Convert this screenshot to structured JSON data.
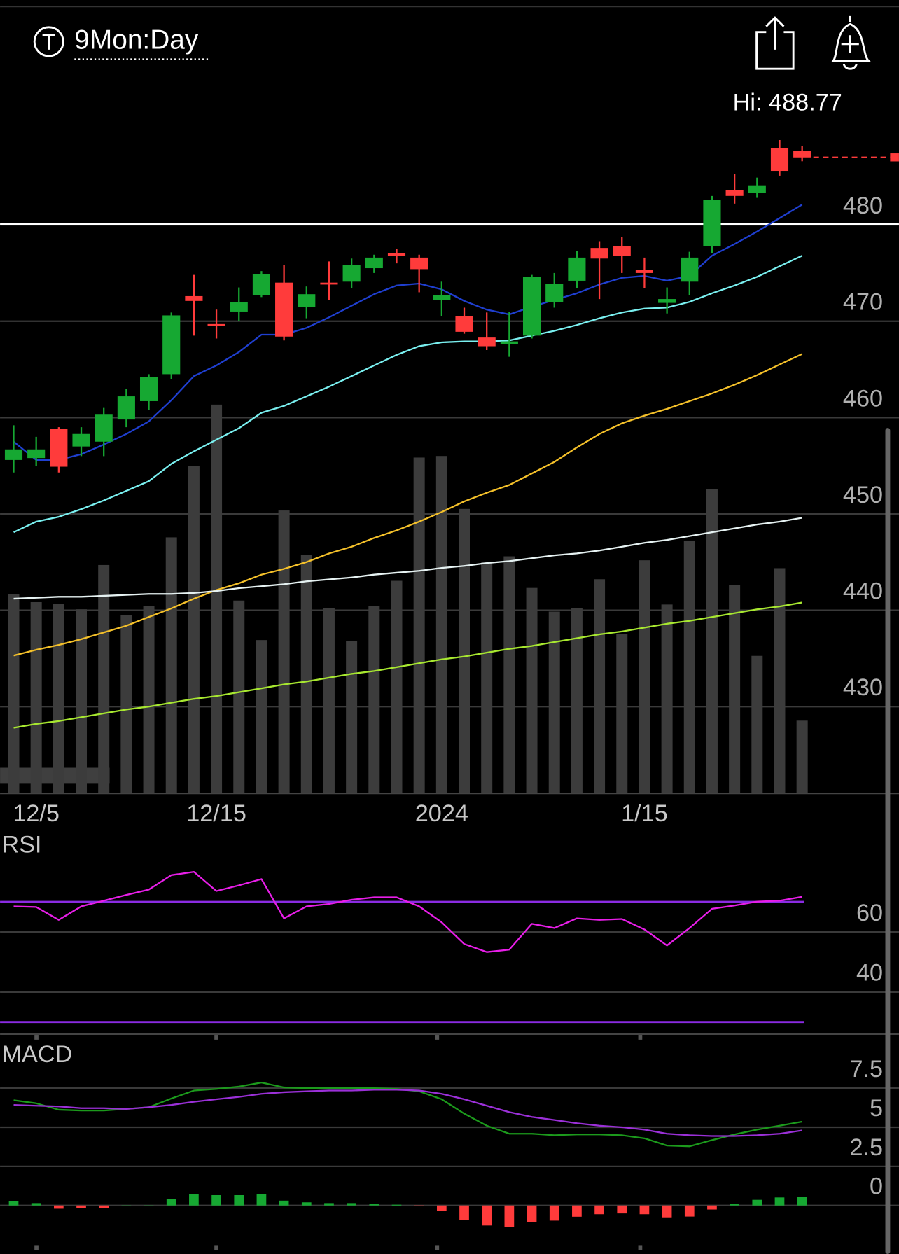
{
  "header": {
    "symbol": "9Mon:Day",
    "high_label": "Hi: 488.77"
  },
  "chart_data": [
    {
      "type": "candlestick",
      "categories": [
        null,
        "12/5",
        null,
        null,
        null,
        null,
        null,
        null,
        null,
        "12/15",
        null,
        null,
        null,
        null,
        null,
        null,
        null,
        null,
        null,
        "2024",
        null,
        null,
        null,
        null,
        null,
        null,
        null,
        null,
        "1/15",
        null,
        null,
        null,
        null,
        null,
        null,
        null
      ],
      "open": [
        455.6,
        455.8,
        458.8,
        457,
        457.5,
        459.8,
        461.7,
        464.5,
        472.6,
        469.7,
        471,
        472.7,
        474,
        471.5,
        474,
        474.1,
        475.5,
        477.1,
        476.6,
        472.2,
        470.5,
        468.3,
        467.6,
        468.5,
        472,
        474.2,
        477.6,
        477.8,
        475.3,
        471.9,
        474.1,
        477.8,
        483.6,
        483.3,
        488,
        487.7
      ],
      "high": [
        459.2,
        458,
        459,
        459,
        461,
        463,
        464.5,
        470.9,
        474.8,
        471.2,
        473.5,
        475.2,
        475.8,
        473.6,
        476.2,
        476.5,
        476.9,
        477.5,
        476.9,
        474.1,
        471.4,
        470.9,
        471,
        474.8,
        475,
        477.3,
        478.3,
        478.7,
        476.6,
        473.5,
        477.2,
        483,
        485.3,
        484.9,
        488.8,
        488.2
      ],
      "low": [
        454.3,
        455,
        454.3,
        456,
        456,
        459,
        460.8,
        464,
        468.5,
        468.2,
        470,
        472.5,
        468,
        470.3,
        472.2,
        473.4,
        475,
        476,
        473,
        470.5,
        468.7,
        467,
        466.3,
        468.2,
        471.4,
        473.4,
        472.3,
        475,
        473.4,
        470.8,
        472.7,
        477.1,
        482.2,
        482.8,
        485.1,
        486.6
      ],
      "close": [
        456.7,
        456.7,
        454.9,
        458.3,
        460.3,
        462.2,
        464.2,
        470.6,
        472.1,
        469.5,
        472,
        474.9,
        468.4,
        472.8,
        473.8,
        475.8,
        476.6,
        476.8,
        475.4,
        472.7,
        468.9,
        467.4,
        467.9,
        474.6,
        473.9,
        476.6,
        476.5,
        476.8,
        475,
        472.3,
        476.6,
        482.6,
        483,
        484.1,
        485.6,
        487
      ],
      "up_color": "#16a832",
      "down_color": "#ff3b3b",
      "ylim": [
        421,
        503
      ],
      "yticks": [
        430,
        440,
        450,
        460,
        470,
        480
      ],
      "grid": true,
      "alert_line": 480.1,
      "last_price": 487,
      "series": [
        {
          "color": "#1f3fd0",
          "values": [
            457.5,
            455.6,
            455.6,
            456.2,
            457.2,
            458.3,
            459.6,
            461.8,
            464.3,
            465.4,
            466.8,
            468.6,
            468.6,
            469.3,
            470.4,
            471.6,
            472.8,
            473.7,
            473.9,
            473.3,
            472.1,
            471.2,
            470.7,
            471.5,
            472.2,
            472.9,
            473.8,
            474.5,
            474.7,
            474.2,
            474.7,
            476.8,
            478,
            479.3,
            480.7,
            482.1
          ]
        },
        {
          "color": "#7af0f0",
          "values": [
            448.1,
            449.2,
            449.7,
            450.5,
            451.4,
            452.4,
            453.4,
            455.2,
            456.5,
            457.7,
            458.9,
            460.5,
            461.2,
            462.2,
            463.2,
            464.3,
            465.4,
            466.5,
            467.4,
            467.8,
            467.9,
            467.9,
            468,
            468.5,
            469,
            469.6,
            470.3,
            470.9,
            471.3,
            471.4,
            472,
            472.9,
            473.7,
            474.6,
            475.7,
            476.8
          ]
        },
        {
          "color": "#f5c12a",
          "values": [
            435.3,
            435.9,
            436.4,
            437,
            437.7,
            438.4,
            439.3,
            440.2,
            441.2,
            442.1,
            442.8,
            443.7,
            444.3,
            445,
            445.9,
            446.6,
            447.5,
            448.3,
            449.2,
            450.2,
            451.3,
            452.2,
            453,
            454.2,
            455.4,
            456.9,
            458.3,
            459.4,
            460.2,
            460.9,
            461.7,
            462.5,
            463.4,
            464.4,
            465.5,
            466.6
          ]
        },
        {
          "color": "#e6f2f2",
          "values": [
            441.2,
            441.3,
            441.4,
            441.4,
            441.5,
            441.6,
            441.7,
            441.7,
            441.8,
            442,
            442.3,
            442.5,
            442.7,
            443,
            443.2,
            443.4,
            443.7,
            443.9,
            444.1,
            444.4,
            444.6,
            444.9,
            445.1,
            445.4,
            445.7,
            445.9,
            446.2,
            446.6,
            447,
            447.3,
            447.7,
            448.1,
            448.5,
            448.9,
            449.2,
            449.6
          ]
        },
        {
          "color": "#a8e830",
          "values": [
            427.8,
            428.2,
            428.5,
            428.9,
            429.3,
            429.7,
            430,
            430.4,
            430.8,
            431.1,
            431.5,
            431.9,
            432.3,
            432.6,
            433,
            433.4,
            433.7,
            434.1,
            434.5,
            434.9,
            435.2,
            435.6,
            436,
            436.3,
            436.7,
            437.1,
            437.5,
            437.8,
            438.2,
            438.6,
            438.9,
            439.3,
            439.7,
            440.1,
            440.4,
            440.8
          ]
        }
      ],
      "volume": {
        "color": "#3c3c3c",
        "lim": [
          0,
          1000
        ],
        "values": [
          252,
          242,
          240,
          233,
          289,
          226,
          237,
          324,
          414,
          492,
          244,
          194,
          358,
          302,
          234,
          193,
          237,
          269,
          425,
          427,
          360,
          293,
          300,
          260,
          230,
          234,
          271,
          202,
          295,
          239,
          320,
          385,
          264,
          174,
          285,
          92
        ]
      }
    },
    {
      "type": "line",
      "title": "RSI",
      "ylim": [
        26,
        92
      ],
      "yticks": [
        40,
        60
      ],
      "reference_lines": [
        30,
        70
      ],
      "reference_color": "#8a2be2",
      "series": [
        {
          "color": "#e81ee8",
          "values": [
            68.5,
            68.3,
            64,
            68.5,
            70.4,
            72.3,
            74.1,
            78.9,
            80,
            73.6,
            75.5,
            77.6,
            64.5,
            68.5,
            69.3,
            70.7,
            71.5,
            71.5,
            68.5,
            63.2,
            56,
            53.3,
            54.1,
            62.7,
            61.3,
            64.5,
            64,
            64.3,
            60.8,
            55.5,
            61.3,
            67.7,
            68.8,
            70.1,
            70.4,
            71.7
          ]
        }
      ]
    },
    {
      "type": "macd",
      "title": "MACD",
      "ylim": [
        -3.1,
        10.6
      ],
      "yticks": [
        0,
        2.5,
        5,
        7.5
      ],
      "up_color": "#16a832",
      "down_color": "#ff3b3b",
      "series": [
        {
          "color": "#1c9a1c",
          "values": [
            6.73,
            6.53,
            6.12,
            6.07,
            6.07,
            6.17,
            6.28,
            6.84,
            7.35,
            7.45,
            7.6,
            7.86,
            7.55,
            7.5,
            7.5,
            7.5,
            7.5,
            7.45,
            7.3,
            6.79,
            5.87,
            5.1,
            4.59,
            4.59,
            4.49,
            4.54,
            4.54,
            4.49,
            4.29,
            3.83,
            3.78,
            4.18,
            4.54,
            4.85,
            5.1,
            5.36
          ]
        },
        {
          "color": "#9b30d8",
          "values": [
            6.43,
            6.38,
            6.33,
            6.22,
            6.22,
            6.17,
            6.28,
            6.43,
            6.63,
            6.79,
            6.94,
            7.14,
            7.24,
            7.3,
            7.35,
            7.35,
            7.4,
            7.4,
            7.35,
            7.14,
            6.79,
            6.38,
            5.97,
            5.66,
            5.46,
            5.26,
            5.1,
            5,
            4.85,
            4.59,
            4.49,
            4.44,
            4.44,
            4.49,
            4.59,
            4.8
          ]
        }
      ],
      "histogram": [
        0.3,
        0.15,
        -0.21,
        -0.15,
        -0.15,
        0,
        0,
        0.41,
        0.72,
        0.66,
        0.66,
        0.72,
        0.31,
        0.2,
        0.15,
        0.15,
        0.1,
        0.05,
        -0.05,
        -0.35,
        -0.92,
        -1.28,
        -1.38,
        -1.07,
        -0.97,
        -0.72,
        -0.56,
        -0.51,
        -0.56,
        -0.76,
        -0.71,
        -0.26,
        0.1,
        0.36,
        0.51,
        0.56
      ]
    }
  ]
}
